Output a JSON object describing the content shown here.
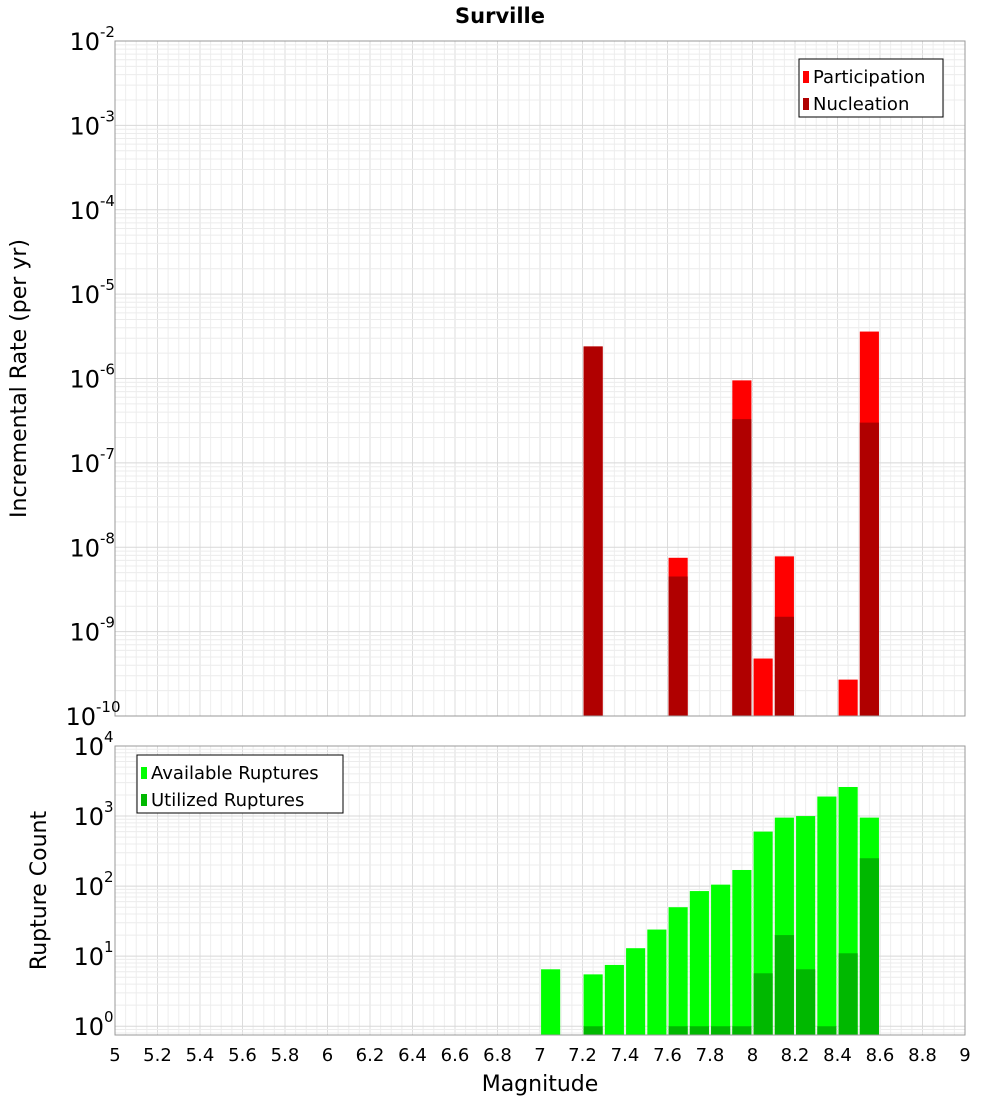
{
  "chart_data": [
    {
      "type": "bar",
      "title": "Surville",
      "xlabel": "",
      "ylabel": "Incremental Rate (per yr)",
      "yscale": "log",
      "ylim": [
        1e-10,
        0.01
      ],
      "xlim": [
        5,
        9
      ],
      "grid": true,
      "legend_position": "top-right",
      "y_ticks": [
        {
          "base": "10",
          "exp": "-2",
          "value": 0.01
        },
        {
          "base": "10",
          "exp": "-3",
          "value": 0.001
        },
        {
          "base": "10",
          "exp": "-4",
          "value": 0.0001
        },
        {
          "base": "10",
          "exp": "-5",
          "value": 1e-05
        },
        {
          "base": "10",
          "exp": "-6",
          "value": 1e-06
        },
        {
          "base": "10",
          "exp": "-7",
          "value": 1e-07
        },
        {
          "base": "10",
          "exp": "-8",
          "value": 1e-08
        },
        {
          "base": "10",
          "exp": "-9",
          "value": 1e-09
        },
        {
          "base": "10",
          "exp": "-10",
          "value": 1e-10
        }
      ],
      "series": [
        {
          "name": "Participation",
          "color": "#ff0000",
          "x": [
            7.25,
            7.65,
            7.95,
            8.05,
            8.15,
            8.45,
            8.55
          ],
          "values": [
            2.4e-06,
            7.5e-09,
            9.5e-07,
            4.8e-10,
            7.8e-09,
            2.7e-10,
            3.6e-06
          ]
        },
        {
          "name": "Nucleation",
          "color": "#b00000",
          "x": [
            7.25,
            7.65,
            7.95,
            8.15,
            8.55
          ],
          "values": [
            2.4e-06,
            4.5e-09,
            3.3e-07,
            1.5e-09,
            3e-07
          ]
        }
      ]
    },
    {
      "type": "bar",
      "title": "",
      "xlabel": "Magnitude",
      "ylabel": "Rupture Count",
      "yscale": "log",
      "ylim": [
        0.75,
        10000
      ],
      "xlim": [
        5,
        9
      ],
      "grid": true,
      "legend_position": "top-left",
      "x_ticks": [
        "5",
        "5.2",
        "5.4",
        "5.6",
        "5.8",
        "6",
        "6.2",
        "6.4",
        "6.6",
        "6.8",
        "7",
        "7.2",
        "7.4",
        "7.6",
        "7.8",
        "8",
        "8.2",
        "8.4",
        "8.6",
        "8.8",
        "9"
      ],
      "y_ticks": [
        {
          "base": "10",
          "exp": "4",
          "value": 10000
        },
        {
          "base": "10",
          "exp": "3",
          "value": 1000
        },
        {
          "base": "10",
          "exp": "2",
          "value": 100
        },
        {
          "base": "10",
          "exp": "1",
          "value": 10
        },
        {
          "base": "10",
          "exp": "0",
          "value": 1
        }
      ],
      "series": [
        {
          "name": "Available Ruptures",
          "color": "#00ff00",
          "x": [
            7.05,
            7.25,
            7.35,
            7.45,
            7.55,
            7.65,
            7.75,
            7.85,
            7.95,
            8.05,
            8.15,
            8.25,
            8.35,
            8.45,
            8.55
          ],
          "values": [
            6.5,
            5.5,
            7.5,
            13,
            24,
            50,
            85,
            105,
            170,
            600,
            950,
            1000,
            1900,
            2600,
            950
          ]
        },
        {
          "name": "Utilized Ruptures",
          "color": "#00b800",
          "x": [
            7.25,
            7.65,
            7.75,
            7.85,
            7.95,
            8.05,
            8.15,
            8.25,
            8.35,
            8.45,
            8.55
          ],
          "values": [
            1,
            1,
            1,
            1,
            1,
            5.7,
            20,
            6.5,
            1,
            11,
            250
          ]
        }
      ]
    }
  ]
}
